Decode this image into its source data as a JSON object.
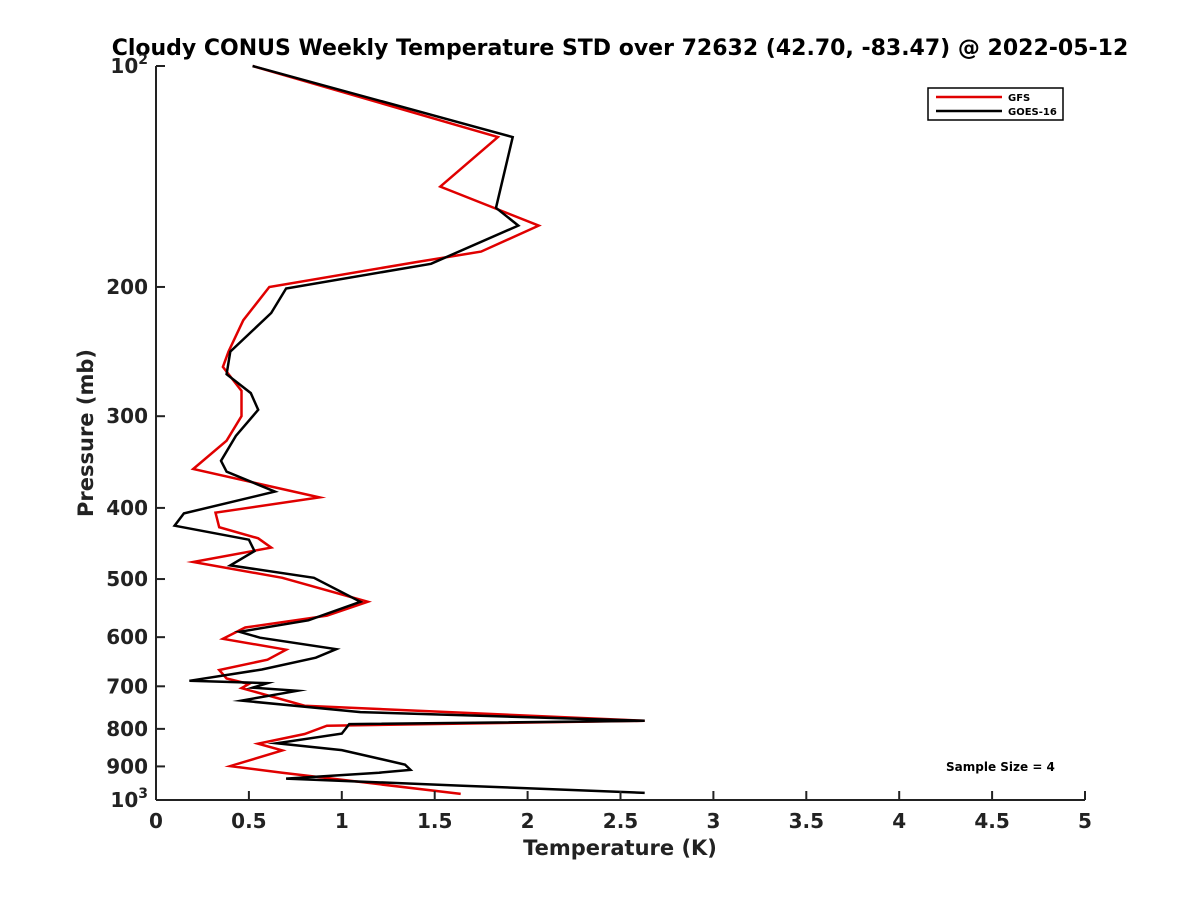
{
  "chart_data": {
    "type": "line",
    "title": "Cloudy CONUS Weekly Temperature STD over 72632 (42.70, -83.47) @ 2022-05-12",
    "xlabel": "Temperature (K)",
    "ylabel": "Pressure (mb)",
    "xlim": [
      0,
      5
    ],
    "ylim": [
      100,
      1000
    ],
    "y_scale": "log",
    "y_reversed": true,
    "x_ticks": [
      "0",
      "0.5",
      "1",
      "1.5",
      "2",
      "2.5",
      "3",
      "3.5",
      "4",
      "4.5",
      "5"
    ],
    "x_tick_values": [
      0,
      0.5,
      1,
      1.5,
      2,
      2.5,
      3,
      3.5,
      4,
      4.5,
      5
    ],
    "y_ticks": [
      {
        "value": 100,
        "base": "10",
        "exp": "2"
      },
      {
        "value": 200,
        "label": "200"
      },
      {
        "value": 300,
        "label": "300"
      },
      {
        "value": 400,
        "label": "400"
      },
      {
        "value": 500,
        "label": "500"
      },
      {
        "value": 600,
        "label": "600"
      },
      {
        "value": 700,
        "label": "700"
      },
      {
        "value": 800,
        "label": "800"
      },
      {
        "value": 900,
        "label": "900"
      },
      {
        "value": 1000,
        "base": "10",
        "exp": "3"
      }
    ],
    "legend_position": "top-right",
    "annotation": "Sample Size = 4",
    "series": [
      {
        "name": "GFS",
        "color": "#e00000",
        "points": [
          [
            0.52,
            100
          ],
          [
            1.84,
            125
          ],
          [
            1.53,
            146
          ],
          [
            2.06,
            165
          ],
          [
            1.75,
            179
          ],
          [
            1.4,
            185
          ],
          [
            0.61,
            200
          ],
          [
            0.47,
            222
          ],
          [
            0.39,
            245
          ],
          [
            0.36,
            257
          ],
          [
            0.46,
            277
          ],
          [
            0.46,
            300
          ],
          [
            0.38,
            324
          ],
          [
            0.2,
            354
          ],
          [
            0.88,
            387
          ],
          [
            0.32,
            406
          ],
          [
            0.34,
            425
          ],
          [
            0.55,
            440
          ],
          [
            0.62,
            453
          ],
          [
            0.2,
            474
          ],
          [
            0.68,
            498
          ],
          [
            1.14,
            537
          ],
          [
            0.92,
            561
          ],
          [
            0.48,
            582
          ],
          [
            0.36,
            603
          ],
          [
            0.7,
            624
          ],
          [
            0.6,
            644
          ],
          [
            0.34,
            665
          ],
          [
            0.38,
            683
          ],
          [
            0.5,
            695
          ],
          [
            0.46,
            704
          ],
          [
            0.8,
            744
          ],
          [
            2.63,
            780
          ],
          [
            0.92,
            792
          ],
          [
            0.8,
            813
          ],
          [
            0.55,
            838
          ],
          [
            0.68,
            856
          ],
          [
            0.4,
            899
          ],
          [
            0.68,
            918
          ],
          [
            1.64,
            981
          ]
        ]
      },
      {
        "name": "GOES-16",
        "color": "#000000",
        "points": [
          [
            0.52,
            100
          ],
          [
            1.92,
            125
          ],
          [
            1.83,
            156
          ],
          [
            1.95,
            165
          ],
          [
            1.48,
            186
          ],
          [
            0.7,
            201
          ],
          [
            0.62,
            217
          ],
          [
            0.4,
            245
          ],
          [
            0.38,
            263
          ],
          [
            0.51,
            279
          ],
          [
            0.55,
            294
          ],
          [
            0.43,
            319
          ],
          [
            0.35,
            345
          ],
          [
            0.38,
            357
          ],
          [
            0.64,
            380
          ],
          [
            0.15,
            407
          ],
          [
            0.1,
            423
          ],
          [
            0.5,
            442
          ],
          [
            0.53,
            458
          ],
          [
            0.4,
            479
          ],
          [
            0.85,
            498
          ],
          [
            1.1,
            537
          ],
          [
            0.82,
            569
          ],
          [
            0.45,
            590
          ],
          [
            0.56,
            601
          ],
          [
            0.97,
            623
          ],
          [
            0.86,
            640
          ],
          [
            0.57,
            664
          ],
          [
            0.18,
            688
          ],
          [
            0.6,
            693
          ],
          [
            0.52,
            703
          ],
          [
            0.76,
            710
          ],
          [
            0.46,
            732
          ],
          [
            1.1,
            759
          ],
          [
            2.63,
            780
          ],
          [
            1.04,
            788
          ],
          [
            1.0,
            812
          ],
          [
            0.65,
            837
          ],
          [
            1.0,
            855
          ],
          [
            1.34,
            895
          ],
          [
            1.37,
            910
          ],
          [
            1.2,
            918
          ],
          [
            0.7,
            935
          ],
          [
            1.65,
            956
          ],
          [
            2.63,
            978
          ]
        ]
      }
    ]
  }
}
